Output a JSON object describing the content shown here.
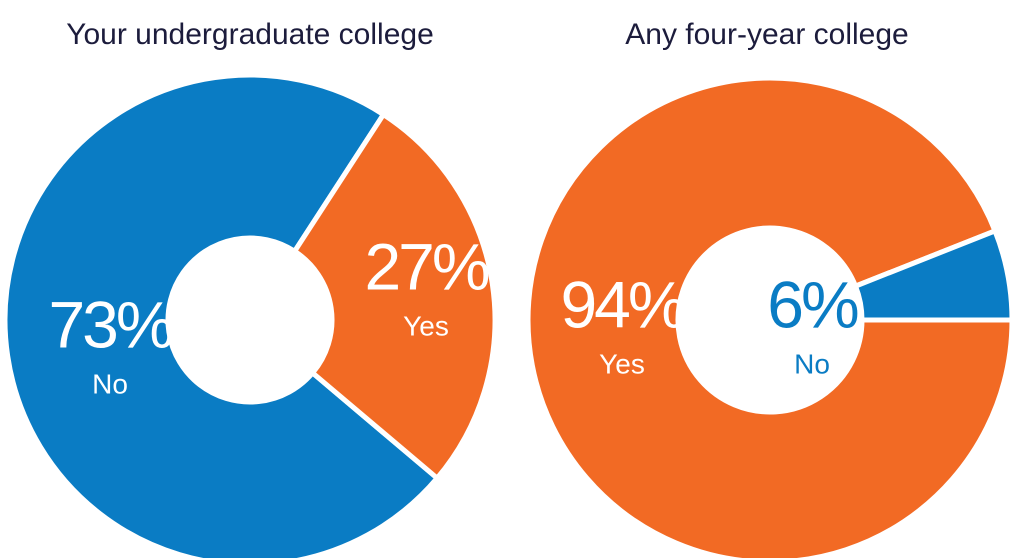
{
  "chart_data": [
    {
      "type": "pie",
      "title": "Your undergraduate college",
      "categories": [
        "No",
        "Yes"
      ],
      "values": [
        73,
        27
      ],
      "value_labels": [
        "73%",
        "27%"
      ],
      "colors": [
        "#0a7cc4",
        "#f26a24"
      ]
    },
    {
      "type": "pie",
      "title": "Any four-year college",
      "categories": [
        "Yes",
        "No"
      ],
      "values": [
        94,
        6
      ],
      "value_labels": [
        "94%",
        "6%"
      ],
      "colors": [
        "#f26a24",
        "#0a7cc4"
      ]
    }
  ]
}
